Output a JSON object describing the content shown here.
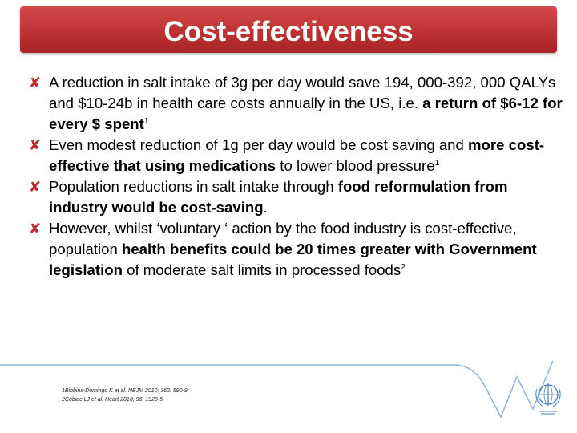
{
  "slide": {
    "title": "Cost-effectiveness",
    "bullets": [
      {
        "parts": [
          {
            "text": "A reduction in salt intake of 3g per day would save 194, 000-392, 000 QALYs and $10-24b in health care costs annually in the US, i.e. "
          },
          {
            "text": "a return of $6-12 for every $ spent",
            "bold": true
          },
          {
            "text": "1",
            "sup": true
          }
        ]
      },
      {
        "parts": [
          {
            "text": "Even modest reduction of 1g per day would be cost saving and "
          },
          {
            "text": "more cost-effective that using medications",
            "bold": true
          },
          {
            "text": " to lower blood pressure"
          },
          {
            "text": "1",
            "sup": true
          }
        ]
      },
      {
        "parts": [
          {
            "text": "Population reductions in salt intake through "
          },
          {
            "text": "food reformulation from industry would be cost-saving",
            "bold": true
          },
          {
            "text": "."
          }
        ]
      },
      {
        "parts": [
          {
            "text": "However, whilst ‘voluntary ‘ action by the food industry is cost-effective, population "
          },
          {
            "text": "health benefits could be 20 times greater with Government legislation",
            "bold": true
          },
          {
            "text": " of moderate salt limits in processed foods"
          },
          {
            "text": "2",
            "sup": true
          }
        ]
      }
    ],
    "bullet_icon": "cross-mark-icon",
    "bullet_glyph": "✘",
    "footnotes": [
      "1Bibbins-Domingo K et al. NEJM 2010; 362: 590-9",
      "2Cobiac LJ et al. Heart 2010; 96: 1920-5"
    ]
  },
  "colors": {
    "banner": "#c13636",
    "bullet_icon": "#c0282d",
    "deco_line": "#8fb3d6"
  }
}
